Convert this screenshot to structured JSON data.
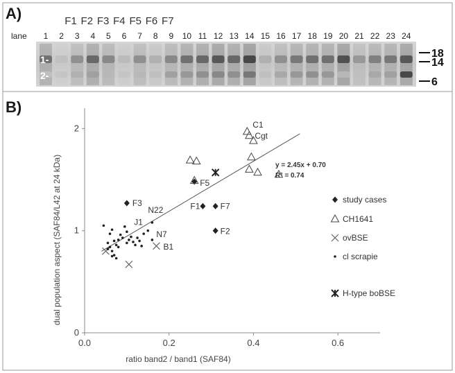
{
  "panel_a": {
    "letter": "A)",
    "lane_header": "lane",
    "lanes": [
      "1",
      "2",
      "3",
      "4",
      "5",
      "6",
      "7",
      "8",
      "9",
      "10",
      "11",
      "12",
      "13",
      "14",
      "15",
      "16",
      "17",
      "18",
      "19",
      "20",
      "21",
      "22",
      "23",
      "24"
    ],
    "f_labels": [
      "F1",
      "F2",
      "F3",
      "F4",
      "F5",
      "F6",
      "F7"
    ],
    "band_labels": [
      "1-",
      "2-"
    ],
    "mw_markers": [
      "18",
      "14",
      "6"
    ]
  },
  "panel_b": {
    "letter": "B)"
  },
  "chart_data": {
    "type": "scatter",
    "title": "",
    "xlabel": "ratio band2 / band1 (SAF84)",
    "ylabel": "dual population aspect (SAF84/L42 at 24 kDa)",
    "xlim": [
      0,
      0.7
    ],
    "ylim": [
      0,
      2.2
    ],
    "xticks": [
      "0.0",
      "0.2",
      "0.4",
      "0.6"
    ],
    "yticks": [
      "0",
      "1",
      "2"
    ],
    "grid": false,
    "legend_position": "right",
    "series": [
      {
        "name": "study cases",
        "marker": "diamond",
        "points": [
          [
            0.1,
            1.27
          ],
          [
            0.28,
            1.24
          ],
          [
            0.31,
            1.24
          ],
          [
            0.31,
            1.0
          ],
          [
            0.26,
            1.48
          ]
        ],
        "labels": [
          "F3",
          "F1",
          "F7",
          "F2",
          "F5"
        ]
      },
      {
        "name": "CH1641",
        "marker": "triangle",
        "points": [
          [
            0.385,
            1.97
          ],
          [
            0.39,
            1.93
          ],
          [
            0.4,
            1.88
          ],
          [
            0.395,
            1.72
          ],
          [
            0.39,
            1.6
          ],
          [
            0.41,
            1.57
          ],
          [
            0.46,
            1.55
          ],
          [
            0.25,
            1.69
          ],
          [
            0.265,
            1.68
          ],
          [
            0.26,
            1.49
          ]
        ],
        "labels": [
          "C1",
          "Cgt",
          "",
          "",
          "",
          "",
          "",
          "",
          "",
          ""
        ]
      },
      {
        "name": "ovBSE",
        "marker": "x",
        "points": [
          [
            0.17,
            0.85
          ],
          [
            0.05,
            0.8
          ],
          [
            0.105,
            0.67
          ]
        ],
        "labels": [
          "B1",
          "",
          ""
        ]
      },
      {
        "name": "cl scrapie",
        "marker": "dot",
        "points": [
          [
            0.06,
            0.97
          ],
          [
            0.065,
            1.01
          ],
          [
            0.07,
            0.9
          ],
          [
            0.075,
            0.86
          ],
          [
            0.08,
            0.91
          ],
          [
            0.085,
            0.96
          ],
          [
            0.09,
            0.93
          ],
          [
            0.095,
            1.04
          ],
          [
            0.1,
            0.99
          ],
          [
            0.105,
            0.91
          ],
          [
            0.11,
            0.94
          ],
          [
            0.115,
            0.89
          ],
          [
            0.12,
            0.86
          ],
          [
            0.125,
            0.93
          ],
          [
            0.13,
            0.9
          ],
          [
            0.135,
            0.85
          ],
          [
            0.055,
            0.88
          ],
          [
            0.06,
            0.84
          ],
          [
            0.065,
            0.8
          ],
          [
            0.07,
            0.76
          ],
          [
            0.075,
            0.73
          ],
          [
            0.065,
            0.75
          ],
          [
            0.14,
            0.97
          ],
          [
            0.15,
            1.0
          ],
          [
            0.045,
            1.05
          ],
          [
            0.055,
            0.82
          ],
          [
            0.08,
            0.84
          ],
          [
            0.1,
            0.88
          ],
          [
            0.16,
            0.91
          ],
          [
            0.16,
            1.08
          ]
        ],
        "labels": [
          "",
          "",
          "",
          "",
          "",
          "",
          "",
          "",
          "",
          "",
          "",
          "",
          "",
          "",
          "",
          "",
          "",
          "",
          "",
          "",
          "",
          "",
          "",
          "J1",
          "",
          "",
          "",
          "",
          "N7",
          "N22"
        ]
      },
      {
        "name": "H-type boBSE",
        "marker": "asterisk",
        "points": [
          [
            0.31,
            1.57
          ]
        ],
        "labels": [
          ""
        ]
      }
    ],
    "trendline": {
      "slope": 2.45,
      "intercept": 0.7,
      "equation": "y = 2.45x + 0.70",
      "r2": "R² = 0.74",
      "x_range": [
        0.04,
        0.51
      ]
    }
  }
}
